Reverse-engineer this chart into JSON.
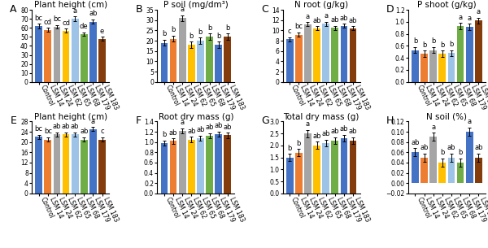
{
  "categories": [
    "Control",
    "LSM 14",
    "LSM 24",
    "LSM 62",
    "LSM 65",
    "LSM 68",
    "LSM 179",
    "LSM 183"
  ],
  "bar_colors": [
    "#4472C4",
    "#ED7D31",
    "#A5A5A5",
    "#FFC000",
    "#9DC3E6",
    "#70AD47",
    "#4472C4",
    "#843C0C"
  ],
  "panels": [
    {
      "label": "A",
      "title": "Plant height (cm)",
      "ylim": [
        0,
        80
      ],
      "yticks": [
        0,
        10,
        20,
        30,
        40,
        50,
        60,
        70,
        80
      ],
      "values": [
        62,
        58,
        61,
        57,
        70,
        53,
        67,
        48
      ],
      "errors": [
        2.5,
        2.0,
        2.0,
        2.0,
        2.5,
        2.0,
        2.5,
        2.0
      ],
      "letters": [
        "bc",
        "cd",
        "bc",
        "cd",
        "a",
        "de",
        "ab",
        "e"
      ]
    },
    {
      "label": "B",
      "title": "P soil (mg/dm³)",
      "ylim": [
        0,
        35
      ],
      "yticks": [
        0,
        5,
        10,
        15,
        20,
        25,
        30,
        35
      ],
      "values": [
        19,
        21,
        31,
        18,
        20,
        22,
        18,
        22
      ],
      "errors": [
        1.5,
        1.5,
        1.5,
        1.5,
        1.5,
        1.5,
        1.5,
        1.5
      ],
      "letters": [
        "b",
        "b",
        "a",
        "b",
        "b",
        "b",
        "b",
        "b"
      ]
    },
    {
      "label": "C",
      "title": "N root (g/kg)",
      "ylim": [
        0,
        14
      ],
      "yticks": [
        0,
        2,
        4,
        6,
        8,
        10,
        12,
        14
      ],
      "values": [
        8.3,
        9.2,
        11.2,
        10.4,
        11.3,
        10.5,
        10.9,
        10.4
      ],
      "errors": [
        0.4,
        0.4,
        0.4,
        0.4,
        0.4,
        0.4,
        0.4,
        0.4
      ],
      "letters": [
        "c",
        "bc",
        "a",
        "ab",
        "a",
        "ab",
        "ab",
        "ab"
      ]
    },
    {
      "label": "D",
      "title": "P shoot (g/kg)",
      "ylim": [
        0.0,
        1.2
      ],
      "yticks": [
        0.0,
        0.2,
        0.4,
        0.6,
        0.8,
        1.0,
        1.2
      ],
      "values": [
        0.53,
        0.47,
        0.53,
        0.47,
        0.48,
        0.93,
        0.92,
        1.02
      ],
      "errors": [
        0.05,
        0.05,
        0.05,
        0.05,
        0.05,
        0.05,
        0.05,
        0.05
      ],
      "letters": [
        "b",
        "b",
        "b",
        "b",
        "b",
        "a",
        "a",
        "a"
      ]
    },
    {
      "label": "E",
      "title": "Plant height (cm)",
      "ylim": [
        0,
        28
      ],
      "yticks": [
        0,
        4,
        8,
        12,
        16,
        20,
        24,
        28
      ],
      "values": [
        22,
        21,
        23,
        23,
        23,
        21,
        25,
        21
      ],
      "errors": [
        0.8,
        0.8,
        0.8,
        0.8,
        0.8,
        0.8,
        0.8,
        0.8
      ],
      "letters": [
        "bc",
        "bc",
        "ab",
        "ab",
        "ab",
        "ab",
        "a",
        "c"
      ]
    },
    {
      "label": "F",
      "title": "Root dry mass (g)",
      "ylim": [
        0.0,
        1.4
      ],
      "yticks": [
        0.0,
        0.2,
        0.4,
        0.6,
        0.8,
        1.0,
        1.2,
        1.4
      ],
      "values": [
        0.98,
        1.02,
        1.22,
        1.05,
        1.07,
        1.12,
        1.15,
        1.13
      ],
      "errors": [
        0.05,
        0.05,
        0.05,
        0.05,
        0.05,
        0.05,
        0.05,
        0.05
      ],
      "letters": [
        "b",
        "ab",
        "a",
        "ab",
        "ab",
        "ab",
        "ab",
        "ab"
      ]
    },
    {
      "label": "G",
      "title": "Total dry mass (g)",
      "ylim": [
        0.0,
        3.0
      ],
      "yticks": [
        0.0,
        0.5,
        1.0,
        1.5,
        2.0,
        2.5,
        3.0
      ],
      "values": [
        1.5,
        1.7,
        2.5,
        2.0,
        2.1,
        2.2,
        2.3,
        2.2
      ],
      "errors": [
        0.15,
        0.15,
        0.15,
        0.15,
        0.15,
        0.15,
        0.15,
        0.15
      ],
      "letters": [
        "b",
        "b",
        "a",
        "ab",
        "ab",
        "ab",
        "ab",
        "ab"
      ]
    },
    {
      "label": "H",
      "title": "N soil (%)",
      "ylim": [
        -0.02,
        0.12
      ],
      "yticks": [
        -0.02,
        0.0,
        0.02,
        0.04,
        0.06,
        0.08,
        0.1,
        0.12
      ],
      "values": [
        0.06,
        0.05,
        0.09,
        0.04,
        0.05,
        0.04,
        0.1,
        0.05
      ],
      "errors": [
        0.008,
        0.008,
        0.008,
        0.008,
        0.008,
        0.008,
        0.008,
        0.008
      ],
      "letters": [
        "ab",
        "ab",
        "a",
        "b",
        "ab",
        "b",
        "a",
        "ab"
      ]
    }
  ],
  "title_fontsize": 7.5,
  "tick_fontsize": 5.5,
  "letter_fontsize": 6,
  "panel_label_fontsize": 9,
  "xtick_rotation": -65
}
